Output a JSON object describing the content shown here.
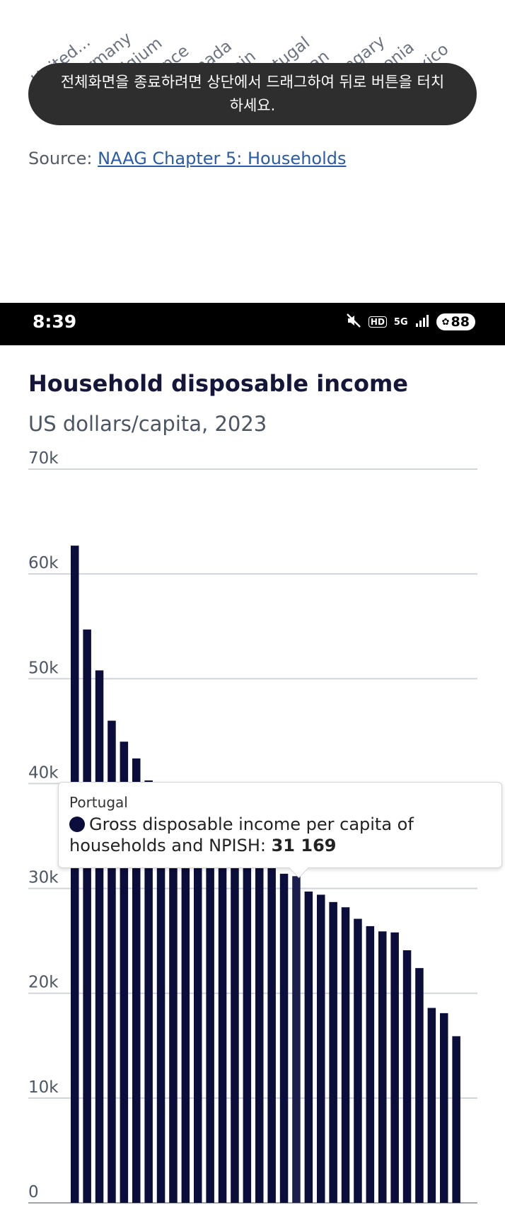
{
  "top_pane": {
    "x_ticks": [
      "United...",
      "Germany",
      "Belgium",
      "France",
      "Canada",
      "Spain",
      "Portugal",
      "Japan",
      "Hungary",
      "Estonia",
      "Mexico"
    ],
    "toast_text": "전체화면을 종료하려면 상단에서 드래그하여 뒤로 버튼을 터치하세요.",
    "source_prefix": "Source:",
    "source_link": "NAAG Chapter 5: Households"
  },
  "status_bar": {
    "time": "8:39",
    "icons": [
      "mute-icon",
      "hd-icon",
      "5g-icon",
      "signal-icon"
    ],
    "battery": "88",
    "hd_text": "HD",
    "network_text": "5G"
  },
  "chart_data": {
    "type": "bar",
    "title": "Household disposable income",
    "subtitle": "US dollars/capita, 2023",
    "ylim": [
      0,
      70000
    ],
    "y_ticks": [
      "0",
      "10k",
      "20k",
      "30k",
      "40k",
      "50k",
      "60k",
      "70k"
    ],
    "y_tick_values": [
      0,
      10000,
      20000,
      30000,
      40000,
      50000,
      60000,
      70000
    ],
    "grid": true,
    "bar_color": "#0b0d3a",
    "highlight_color": "#1c1e4d",
    "highlight_index": 18,
    "series": [
      {
        "name": "Gross disposable income per capita of households and NPISH",
        "values": [
          62700,
          54700,
          50800,
          46000,
          44000,
          42400,
          40300,
          39000,
          38500,
          37800,
          37000,
          36500,
          35800,
          35000,
          34500,
          33800,
          33000,
          31400,
          31169,
          29700,
          29400,
          28700,
          28200,
          27100,
          26400,
          25900,
          25800,
          24100,
          22400,
          18600,
          18100,
          15900
        ]
      }
    ],
    "tooltip": {
      "country": "Portugal",
      "series_label": "Gross disposable income per capita of households and NPISH:",
      "value_label": "31 169"
    }
  }
}
